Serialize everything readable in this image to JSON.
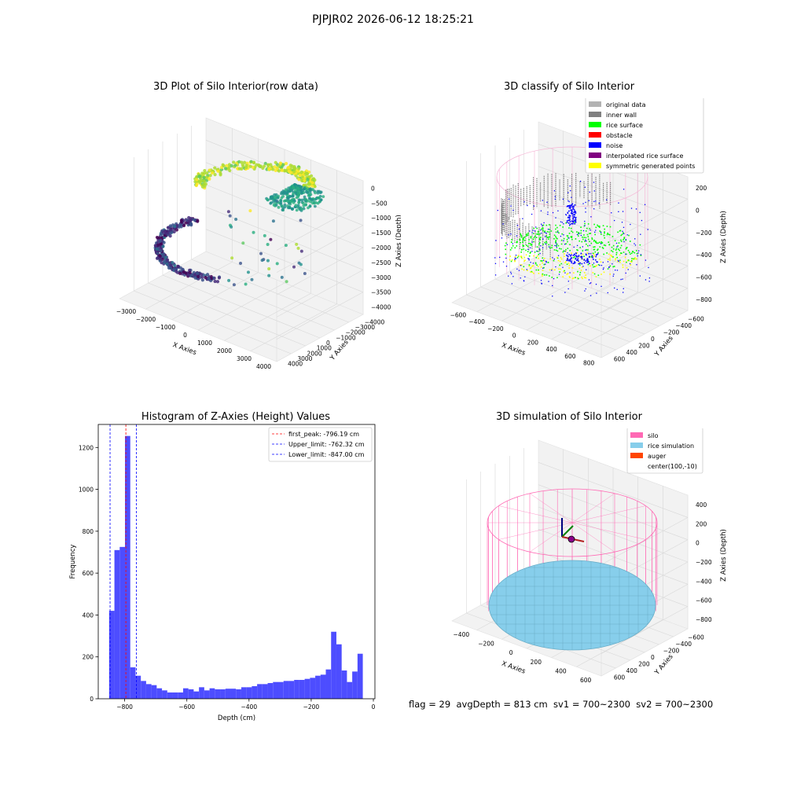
{
  "suptitle": "PJPJR02 2026-06-12 18:25:21",
  "status_text": "flag = 29  avgDepth = 813 cm  sv1 = 700~2300  sv2 = 700~2300",
  "colors": {
    "original": "#b3b3b3",
    "inner_wall": "#808080",
    "rice": "#00ff00",
    "obstacle": "#ff0000",
    "noise": "#0000ff",
    "interp": "#800080",
    "symmetric": "#ffff00",
    "silo": "#ff69b4",
    "rice_sim": "#87ceeb",
    "auger": "#ff4500",
    "hist": "#4d4dff"
  },
  "panel1": {
    "title": "3D Plot of Silo Interior(row data)",
    "xlabel": "X Axies",
    "ylabel": "Y Axies",
    "zlabel": "Z Axies (Depth)",
    "xticks": [
      "−3000",
      "−2000",
      "−1000",
      "0",
      "1000",
      "2000",
      "3000",
      "4000"
    ],
    "yticks": [
      "4000",
      "3000",
      "2000",
      "1000",
      "0",
      "−1000",
      "−2000",
      "−3000",
      "−4000"
    ],
    "zticks": [
      "0",
      "−500",
      "−1000",
      "−1500",
      "−2000",
      "−2500",
      "−3000",
      "−3500",
      "−4000"
    ]
  },
  "panel2": {
    "title": "3D classify of Silo Interior",
    "xlabel": "X Axies",
    "ylabel": "Y Axies",
    "zlabel": "Z Axies (Depth)",
    "xticks": [
      "−600",
      "−400",
      "−200",
      "0",
      "200",
      "400",
      "600",
      "800"
    ],
    "yticks": [
      "600",
      "400",
      "200",
      "0",
      "−200",
      "−400",
      "−600"
    ],
    "zticks": [
      "200",
      "0",
      "−200",
      "−400",
      "−600",
      "−800"
    ],
    "legend": [
      "original data",
      "inner wall",
      "rice surface",
      "obstacle",
      "noise",
      "interpolated rice surface",
      "symmetric generated points"
    ]
  },
  "panel4": {
    "title": "3D simulation of Silo Interior",
    "xlabel": "X Axies",
    "ylabel": "Y Axies",
    "zlabel": "Z Axies (Depth)",
    "xticks": [
      "−400",
      "−200",
      "0",
      "200",
      "400",
      "600"
    ],
    "yticks": [
      "600",
      "400",
      "200",
      "0",
      "−200",
      "−400",
      "−600"
    ],
    "zticks": [
      "400",
      "200",
      "0",
      "−200",
      "−400",
      "−600",
      "−800"
    ],
    "legend": [
      "silo",
      "rice simulation",
      "auger",
      "center(100,-10)"
    ]
  },
  "chart_data": [
    {
      "type": "bar",
      "title": "Histogram of Z-Axies (Height) Values",
      "xlabel": "Depth (cm)",
      "ylabel": "Frequency",
      "xlim": [
        -885,
        5
      ],
      "ylim": [
        0,
        1310
      ],
      "xticks": [
        -800,
        -600,
        -400,
        -200,
        0
      ],
      "xtick_labels": [
        "−800",
        "−600",
        "−400",
        "−200",
        "0"
      ],
      "yticks": [
        0,
        200,
        400,
        600,
        800,
        1000,
        1200
      ],
      "bin_start": -850,
      "bin_width": 17,
      "values": [
        420,
        710,
        725,
        1255,
        150,
        110,
        85,
        70,
        65,
        50,
        40,
        30,
        30,
        30,
        50,
        45,
        35,
        55,
        40,
        50,
        45,
        45,
        48,
        48,
        45,
        55,
        55,
        60,
        70,
        70,
        75,
        80,
        80,
        85,
        85,
        90,
        90,
        95,
        100,
        110,
        115,
        140,
        320,
        260,
        135,
        80,
        130,
        215
      ],
      "lines": [
        {
          "label": "first_peak: -796.19 cm",
          "x": -796.19,
          "color": "#ff0000"
        },
        {
          "label": "Upper_limit: -762.32 cm",
          "x": -762.32,
          "color": "#0000ff"
        },
        {
          "label": "Lower_limit: -847.00 cm",
          "x": -847.0,
          "color": "#0000ff"
        }
      ],
      "legend_position": "upper right"
    }
  ]
}
